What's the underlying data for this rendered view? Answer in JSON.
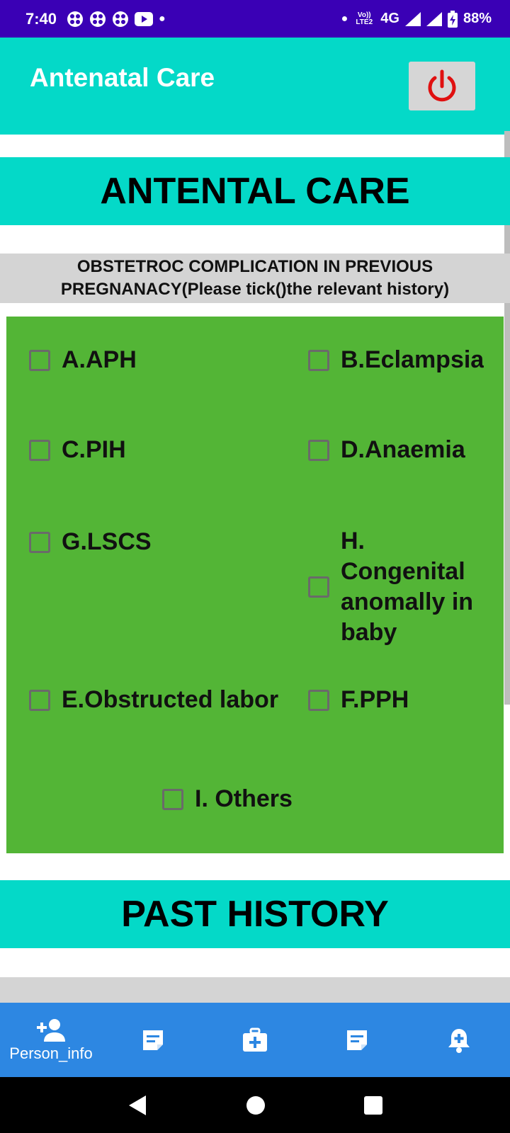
{
  "status_bar": {
    "time": "7:40",
    "network_small": "Vo)) LTE2",
    "network": "4G",
    "battery": "88%"
  },
  "app_bar": {
    "title": "Antenatal Care"
  },
  "sections": {
    "antenatal_title": "ANTENTAL CARE",
    "subheader_line1": "OBSTETROC COMPLICATION IN PREVIOUS",
    "subheader_line2": "PREGNANACY(Please tick()the relevant history)",
    "past_history_title": "PAST HISTORY"
  },
  "checkboxes": {
    "aph": "A.APH",
    "eclampsia": "B.Eclampsia",
    "pih": "C.PIH",
    "anaemia": "D.Anaemia",
    "lscs": "G.LSCS",
    "congenital": "H. Congenital anomally in baby",
    "obstructed": "E.Obstructed labor",
    "pph": "F.PPH",
    "others": "I. Others"
  },
  "bottom_nav": {
    "person_info": "Person_info"
  },
  "colors": {
    "status_bar": "#3a00b5",
    "teal": "#04d9c8",
    "green": "#53b536",
    "nav_blue": "#2d87e2",
    "power_red": "#e01010"
  },
  "icons": [
    "person-add-icon",
    "note-icon",
    "medical-kit-icon",
    "note-icon",
    "bell-plus-icon",
    "power-icon"
  ]
}
